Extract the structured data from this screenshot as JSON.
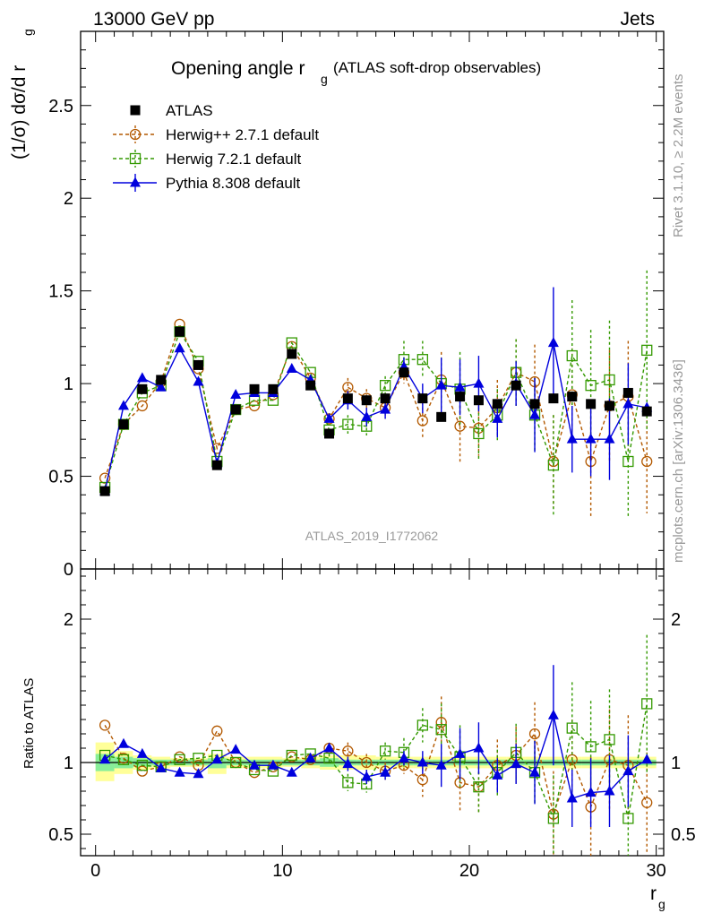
{
  "header": {
    "left": "13000 GeV pp",
    "right": "Jets"
  },
  "side": {
    "rivet": "Rivet 3.1.10, ≥ 2.2M events",
    "mcplots": "mcplots.cern.ch [arXiv:1306.3436]"
  },
  "chart_data": {
    "type": "scatter",
    "title_main": "Opening angle r",
    "title_sub": "g",
    "title_extra": "(ATLAS soft-drop observables)",
    "xlabel": "r",
    "xlabel_sub": "g",
    "ylabel": "(1/σ) dσ/d r",
    "ylabel_sub": "g",
    "ratio_ylabel": "Ratio to ATLAS",
    "watermark": "ATLAS_2019_I1772062",
    "xlim": [
      -0.8,
      30.4
    ],
    "ylim_main": [
      0,
      2.9
    ],
    "ylim_ratio": [
      0.35,
      2.35
    ],
    "x_ticks": [
      0,
      10,
      20,
      30
    ],
    "x_tick_labels": [
      "0",
      "10",
      "20",
      "30"
    ],
    "main_y_ticks": [
      0,
      0.5,
      1,
      1.5,
      2,
      2.5
    ],
    "main_y_tick_labels": [
      "0",
      "0.5",
      "1",
      "1.5",
      "2",
      "2.5"
    ],
    "ratio_y_ticks": [
      0.5,
      1,
      2
    ],
    "ratio_y_tick_labels": [
      "0.5",
      "1",
      "2"
    ],
    "x": [
      0.5,
      1.5,
      2.5,
      3.5,
      4.5,
      5.5,
      6.5,
      7.5,
      8.5,
      9.5,
      10.5,
      11.5,
      12.5,
      13.5,
      14.5,
      15.5,
      16.5,
      17.5,
      18.5,
      19.5,
      20.5,
      21.5,
      22.5,
      23.5,
      24.5,
      25.5,
      26.5,
      27.5,
      28.5,
      29.5
    ],
    "series": [
      {
        "name": "ATLAS",
        "color": "#000000",
        "marker": "square-filled",
        "line": "none",
        "values": [
          0.42,
          0.78,
          0.97,
          1.02,
          1.28,
          1.1,
          0.56,
          0.86,
          0.97,
          0.97,
          1.16,
          0.99,
          0.73,
          0.92,
          0.91,
          0.92,
          1.06,
          0.92,
          0.82,
          0.93,
          0.91,
          0.89,
          0.99,
          0.89,
          0.92,
          0.93,
          0.89,
          0.88,
          0.95,
          0.85
        ]
      },
      {
        "name": "Herwig++ 2.7.1 default",
        "color": "#b35900",
        "marker": "circle-open",
        "line": "dashed",
        "values": [
          0.49,
          0.78,
          0.88,
          1.01,
          1.32,
          1.08,
          0.65,
          0.86,
          0.88,
          0.94,
          1.2,
          1.03,
          0.81,
          0.98,
          0.92,
          0.87,
          1.06,
          0.8,
          1.02,
          0.77,
          0.76,
          0.87,
          1.06,
          1.01,
          0.58,
          0.94,
          0.58,
          0.88,
          0.93,
          0.58
        ],
        "errors": [
          0.01,
          0.01,
          0.01,
          0.01,
          0.01,
          0.01,
          0.01,
          0.01,
          0.01,
          0.01,
          0.01,
          0.01,
          0.01,
          0.05,
          0.05,
          0.06,
          0.06,
          0.1,
          0.15,
          0.2,
          0.15,
          0.15,
          0.18,
          0.2,
          0.25,
          0.25,
          0.3,
          0.3,
          0.3,
          0.28
        ]
      },
      {
        "name": "Herwig 7.2.1 default",
        "color": "#339900",
        "marker": "square-open",
        "line": "dashed",
        "values": [
          0.44,
          0.78,
          0.95,
          0.99,
          1.28,
          1.12,
          0.58,
          0.86,
          0.91,
          0.91,
          1.22,
          1.06,
          0.75,
          0.78,
          0.77,
          0.99,
          1.13,
          1.13,
          1.0,
          0.97,
          0.73,
          0.83,
          1.06,
          0.83,
          0.56,
          1.15,
          0.99,
          1.02,
          0.58,
          1.18
        ],
        "errors": [
          0.01,
          0.01,
          0.01,
          0.01,
          0.01,
          0.01,
          0.01,
          0.01,
          0.01,
          0.01,
          0.01,
          0.01,
          0.02,
          0.05,
          0.05,
          0.05,
          0.1,
          0.1,
          0.14,
          0.2,
          0.14,
          0.14,
          0.18,
          0.2,
          0.27,
          0.3,
          0.3,
          0.32,
          0.3,
          0.43
        ]
      },
      {
        "name": "Pythia 8.308 default",
        "color": "#0000dd",
        "marker": "triangle-filled",
        "line": "solid",
        "values": [
          0.42,
          0.88,
          1.03,
          0.98,
          1.19,
          1.01,
          0.57,
          0.94,
          0.95,
          0.95,
          1.08,
          1.02,
          0.81,
          0.91,
          0.82,
          0.86,
          1.09,
          0.92,
          0.99,
          0.98,
          1.0,
          0.81,
          1.0,
          0.83,
          1.22,
          0.7,
          0.7,
          0.7,
          0.89,
          0.87
        ],
        "errors": [
          0.01,
          0.01,
          0.01,
          0.01,
          0.01,
          0.01,
          0.01,
          0.01,
          0.01,
          0.01,
          0.01,
          0.01,
          0.02,
          0.05,
          0.05,
          0.05,
          0.05,
          0.08,
          0.15,
          0.15,
          0.15,
          0.1,
          0.12,
          0.2,
          0.3,
          0.18,
          0.2,
          0.22,
          0.22,
          0.01
        ]
      }
    ],
    "ratio": {
      "reference": 1.0,
      "band_yellow": [
        [
          0.87,
          1.14
        ],
        [
          0.92,
          1.08
        ],
        [
          0.95,
          1.05
        ],
        [
          0.96,
          1.04
        ],
        [
          0.97,
          1.03
        ],
        [
          0.97,
          1.03
        ],
        [
          0.92,
          1.06
        ],
        [
          0.96,
          1.04
        ],
        [
          0.96,
          1.04
        ],
        [
          0.96,
          1.04
        ],
        [
          0.97,
          1.03
        ],
        [
          0.96,
          1.04
        ],
        [
          0.95,
          1.05
        ],
        [
          0.95,
          1.05
        ],
        [
          0.95,
          1.05
        ],
        [
          0.96,
          1.04
        ],
        [
          0.96,
          1.04
        ],
        [
          0.96,
          1.04
        ],
        [
          0.96,
          1.04
        ],
        [
          0.96,
          1.04
        ],
        [
          0.96,
          1.04
        ],
        [
          0.96,
          1.04
        ],
        [
          0.96,
          1.04
        ],
        [
          0.96,
          1.04
        ],
        [
          0.96,
          1.04
        ],
        [
          0.96,
          1.04
        ],
        [
          0.96,
          1.04
        ],
        [
          0.96,
          1.04
        ],
        [
          0.96,
          1.04
        ],
        [
          0.96,
          1.04
        ]
      ],
      "band_green": [
        [
          0.94,
          1.06
        ],
        [
          0.96,
          1.04
        ],
        [
          0.97,
          1.03
        ],
        [
          0.98,
          1.02
        ],
        [
          0.98,
          1.02
        ],
        [
          0.98,
          1.02
        ],
        [
          0.96,
          1.03
        ],
        [
          0.98,
          1.02
        ],
        [
          0.98,
          1.02
        ],
        [
          0.98,
          1.02
        ],
        [
          0.98,
          1.02
        ],
        [
          0.98,
          1.02
        ],
        [
          0.97,
          1.03
        ],
        [
          0.98,
          1.02
        ],
        [
          0.98,
          1.02
        ],
        [
          0.98,
          1.02
        ],
        [
          0.98,
          1.02
        ],
        [
          0.98,
          1.02
        ],
        [
          0.98,
          1.02
        ],
        [
          0.98,
          1.02
        ],
        [
          0.98,
          1.02
        ],
        [
          0.98,
          1.02
        ],
        [
          0.98,
          1.02
        ],
        [
          0.98,
          1.02
        ],
        [
          0.98,
          1.02
        ],
        [
          0.98,
          1.02
        ],
        [
          0.98,
          1.02
        ],
        [
          0.98,
          1.02
        ],
        [
          0.98,
          1.02
        ],
        [
          0.98,
          1.02
        ]
      ],
      "series": [
        {
          "name": "Herwig++ 2.7.1 default",
          "values": [
            1.26,
            1.03,
            0.94,
            0.97,
            1.04,
            0.98,
            1.22,
            1.0,
            0.93,
            0.97,
            1.04,
            1.02,
            1.1,
            1.08,
            1.0,
            0.94,
            0.98,
            0.88,
            1.28,
            0.86,
            0.83,
            0.98,
            1.05,
            1.2,
            0.64,
            1.02,
            0.69,
            1.02,
            0.98,
            0.72
          ],
          "errors": [
            0.02,
            0.02,
            0.02,
            0.02,
            0.02,
            0.02,
            0.02,
            0.02,
            0.02,
            0.02,
            0.02,
            0.02,
            0.03,
            0.06,
            0.06,
            0.06,
            0.06,
            0.12,
            0.18,
            0.2,
            0.18,
            0.18,
            0.2,
            0.22,
            0.3,
            0.28,
            0.35,
            0.35,
            0.35,
            0.35
          ]
        },
        {
          "name": "Herwig 7.2.1 default",
          "values": [
            1.05,
            1.02,
            0.98,
            0.97,
            1.02,
            1.03,
            1.05,
            1.0,
            0.95,
            0.94,
            1.05,
            1.06,
            1.03,
            0.86,
            0.85,
            1.08,
            1.07,
            1.26,
            1.23,
            1.04,
            0.83,
            0.93,
            1.07,
            0.93,
            0.61,
            1.24,
            1.11,
            1.16,
            0.61,
            1.41
          ],
          "errors": [
            0.02,
            0.02,
            0.02,
            0.02,
            0.02,
            0.02,
            0.02,
            0.02,
            0.02,
            0.02,
            0.02,
            0.02,
            0.03,
            0.06,
            0.06,
            0.06,
            0.1,
            0.12,
            0.18,
            0.22,
            0.18,
            0.16,
            0.2,
            0.22,
            0.3,
            0.32,
            0.32,
            0.35,
            0.35,
            0.48
          ]
        },
        {
          "name": "Pythia 8.308 default",
          "values": [
            1.02,
            1.13,
            1.06,
            0.96,
            0.93,
            0.92,
            1.02,
            1.09,
            0.98,
            0.98,
            0.93,
            1.03,
            1.1,
            0.99,
            0.9,
            0.93,
            1.03,
            1.0,
            0.98,
            1.06,
            1.1,
            0.91,
            0.99,
            0.93,
            1.33,
            0.75,
            0.79,
            0.8,
            0.94,
            1.02
          ],
          "errors": [
            0.01,
            0.01,
            0.01,
            0.01,
            0.01,
            0.01,
            0.01,
            0.01,
            0.01,
            0.01,
            0.01,
            0.01,
            0.02,
            0.05,
            0.05,
            0.05,
            0.05,
            0.08,
            0.15,
            0.18,
            0.18,
            0.12,
            0.14,
            0.22,
            0.35,
            0.2,
            0.24,
            0.25,
            0.25,
            0.02
          ]
        }
      ]
    }
  }
}
